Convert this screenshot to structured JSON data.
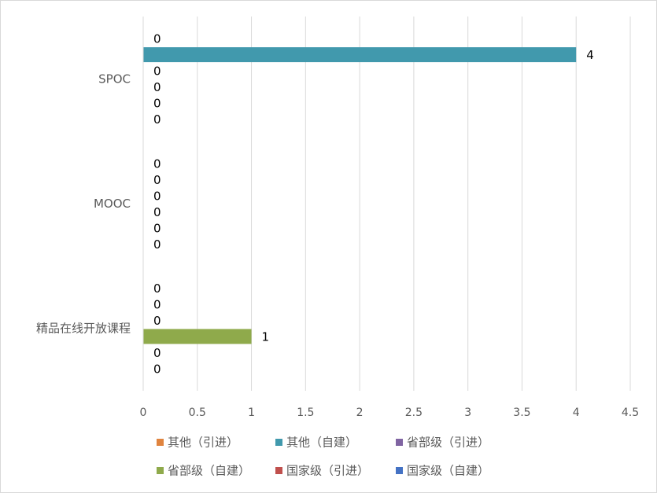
{
  "chart_data": {
    "type": "bar",
    "orientation": "horizontal",
    "categories": [
      "精品在线开放课程",
      "MOOC",
      "SPOC"
    ],
    "series": [
      {
        "name": "国家级（自建）",
        "color": "#4472c4",
        "values": [
          0,
          0,
          0
        ]
      },
      {
        "name": "国家级（引进）",
        "color": "#c0504d",
        "values": [
          0,
          0,
          0
        ]
      },
      {
        "name": "省部级（自建）",
        "color": "#8faa4b",
        "values": [
          1,
          0,
          0
        ]
      },
      {
        "name": "省部级（引进）",
        "color": "#8064a2",
        "values": [
          0,
          0,
          0
        ]
      },
      {
        "name": "其他（自建）",
        "color": "#4199ad",
        "values": [
          0,
          0,
          4
        ]
      },
      {
        "name": "其他（引进）",
        "color": "#e0843f",
        "values": [
          0,
          0,
          0
        ]
      }
    ],
    "x_ticks": [
      "0",
      "0.5",
      "1",
      "1.5",
      "2",
      "2.5",
      "3",
      "3.5",
      "4",
      "4.5"
    ],
    "xlim": [
      0,
      4.5
    ],
    "grid": "vertical",
    "data_labels": true,
    "legend_position": "bottom",
    "legend_order": [
      "其他（引进）",
      "其他（自建）",
      "省部级（引进）",
      "省部级（自建）",
      "国家级（引进）",
      "国家级（自建）"
    ],
    "title": "",
    "xlabel": "",
    "ylabel": ""
  }
}
